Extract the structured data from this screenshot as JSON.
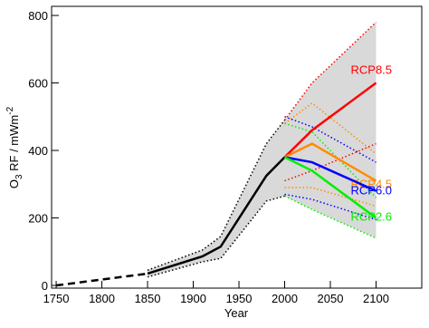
{
  "chart_data": {
    "type": "line",
    "xlabel": "Year",
    "ylabel": {
      "main": "O",
      "sub": "3",
      "rest": " RF / mWm",
      "sup": "-2"
    },
    "x": [
      1750,
      1850,
      1910,
      1930,
      1980,
      2000,
      2030,
      2100
    ],
    "xlim": [
      1745,
      2150
    ],
    "xticks": [
      1750,
      1800,
      1850,
      1900,
      1950,
      2000,
      2050,
      2100
    ],
    "ylim": [
      -8,
      827
    ],
    "yticks": [
      0,
      200,
      400,
      600,
      800
    ],
    "band": {
      "color": "#d9d9d9",
      "upper": [
        null,
        45,
        105,
        145,
        420,
        490,
        600,
        780
      ],
      "lower": [
        null,
        25,
        70,
        80,
        250,
        265,
        225,
        140
      ]
    },
    "series": [
      {
        "color": "#000000",
        "style": "dashed",
        "values": [
          0,
          35,
          null,
          null,
          null,
          null,
          null,
          null
        ]
      },
      {
        "color": "#000000",
        "style": "solid",
        "values": [
          null,
          35,
          86,
          115,
          325,
          380,
          null,
          null
        ]
      },
      {
        "color": "#000000",
        "style": "dotted",
        "values": [
          null,
          45,
          105,
          145,
          420,
          490,
          null,
          null
        ]
      },
      {
        "color": "#000000",
        "style": "dotted",
        "values": [
          null,
          25,
          70,
          80,
          250,
          265,
          null,
          null
        ]
      },
      {
        "color": "#ff0000",
        "style": "dotted",
        "values": [
          null,
          null,
          null,
          null,
          null,
          490,
          600,
          780
        ]
      },
      {
        "color": "#ff0000",
        "style": "dotted",
        "values": [
          null,
          null,
          null,
          null,
          null,
          310,
          340,
          420
        ]
      },
      {
        "color": "#ff8c00",
        "style": "dotted",
        "values": [
          null,
          null,
          null,
          null,
          null,
          480,
          540,
          390
        ]
      },
      {
        "color": "#ff8c00",
        "style": "dotted",
        "values": [
          null,
          null,
          null,
          null,
          null,
          290,
          290,
          235
        ]
      },
      {
        "color": "#0000ff",
        "style": "dotted",
        "values": [
          null,
          null,
          null,
          null,
          null,
          500,
          470,
          365
        ]
      },
      {
        "color": "#0000ff",
        "style": "dotted",
        "values": [
          null,
          null,
          null,
          null,
          null,
          270,
          255,
          195
        ]
      },
      {
        "color": "#00ee00",
        "style": "dotted",
        "values": [
          null,
          null,
          null,
          null,
          null,
          480,
          455,
          260
        ]
      },
      {
        "color": "#00ee00",
        "style": "dotted",
        "values": [
          null,
          null,
          null,
          null,
          null,
          265,
          225,
          140
        ]
      },
      {
        "name": "RCP8.5",
        "color": "#ff0000",
        "style": "solid",
        "values": [
          null,
          null,
          null,
          null,
          null,
          380,
          460,
          600
        ]
      },
      {
        "name": "RCP4.5",
        "color": "#ff8c00",
        "style": "solid",
        "values": [
          null,
          null,
          null,
          null,
          null,
          380,
          420,
          310
        ]
      },
      {
        "name": "RCP6.0",
        "color": "#0000ff",
        "style": "solid",
        "values": [
          null,
          null,
          null,
          null,
          null,
          380,
          365,
          280
        ]
      },
      {
        "name": "RCP2.6",
        "color": "#00ee00",
        "style": "solid",
        "values": [
          null,
          null,
          null,
          null,
          null,
          380,
          340,
          200
        ]
      }
    ]
  }
}
